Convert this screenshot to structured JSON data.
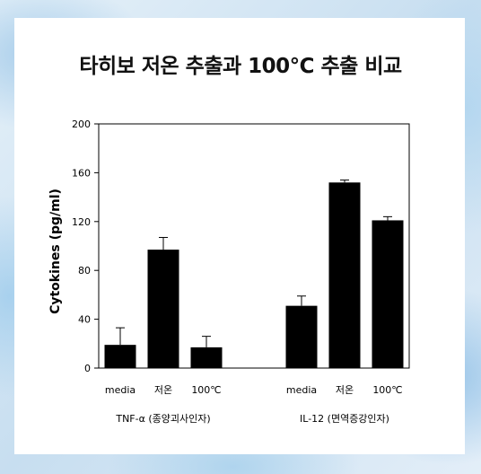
{
  "title_parts": {
    "prefix": "타히보 ",
    "emphasis": "저온",
    "suffix": " 추출과 100℃ 추출 비교"
  },
  "chart_data": {
    "type": "bar",
    "title": "타히보 저온 추출과 100℃ 추출 비교",
    "ylabel": "Cytokines (pg/ml)",
    "ylim": [
      0,
      200
    ],
    "yticks": [
      0,
      40,
      80,
      120,
      160,
      200
    ],
    "groups": [
      {
        "name": "TNF-α (종양괴사인자)",
        "categories": [
          "media",
          "저온",
          "100℃"
        ],
        "values": [
          19,
          97,
          17
        ],
        "errors": [
          14,
          10,
          9
        ]
      },
      {
        "name": "IL-12 (면역증강인자)",
        "categories": [
          "media",
          "저온",
          "100℃"
        ],
        "values": [
          51,
          152,
          121
        ],
        "errors": [
          8,
          2,
          3
        ]
      }
    ],
    "bar_color": "#000000"
  }
}
